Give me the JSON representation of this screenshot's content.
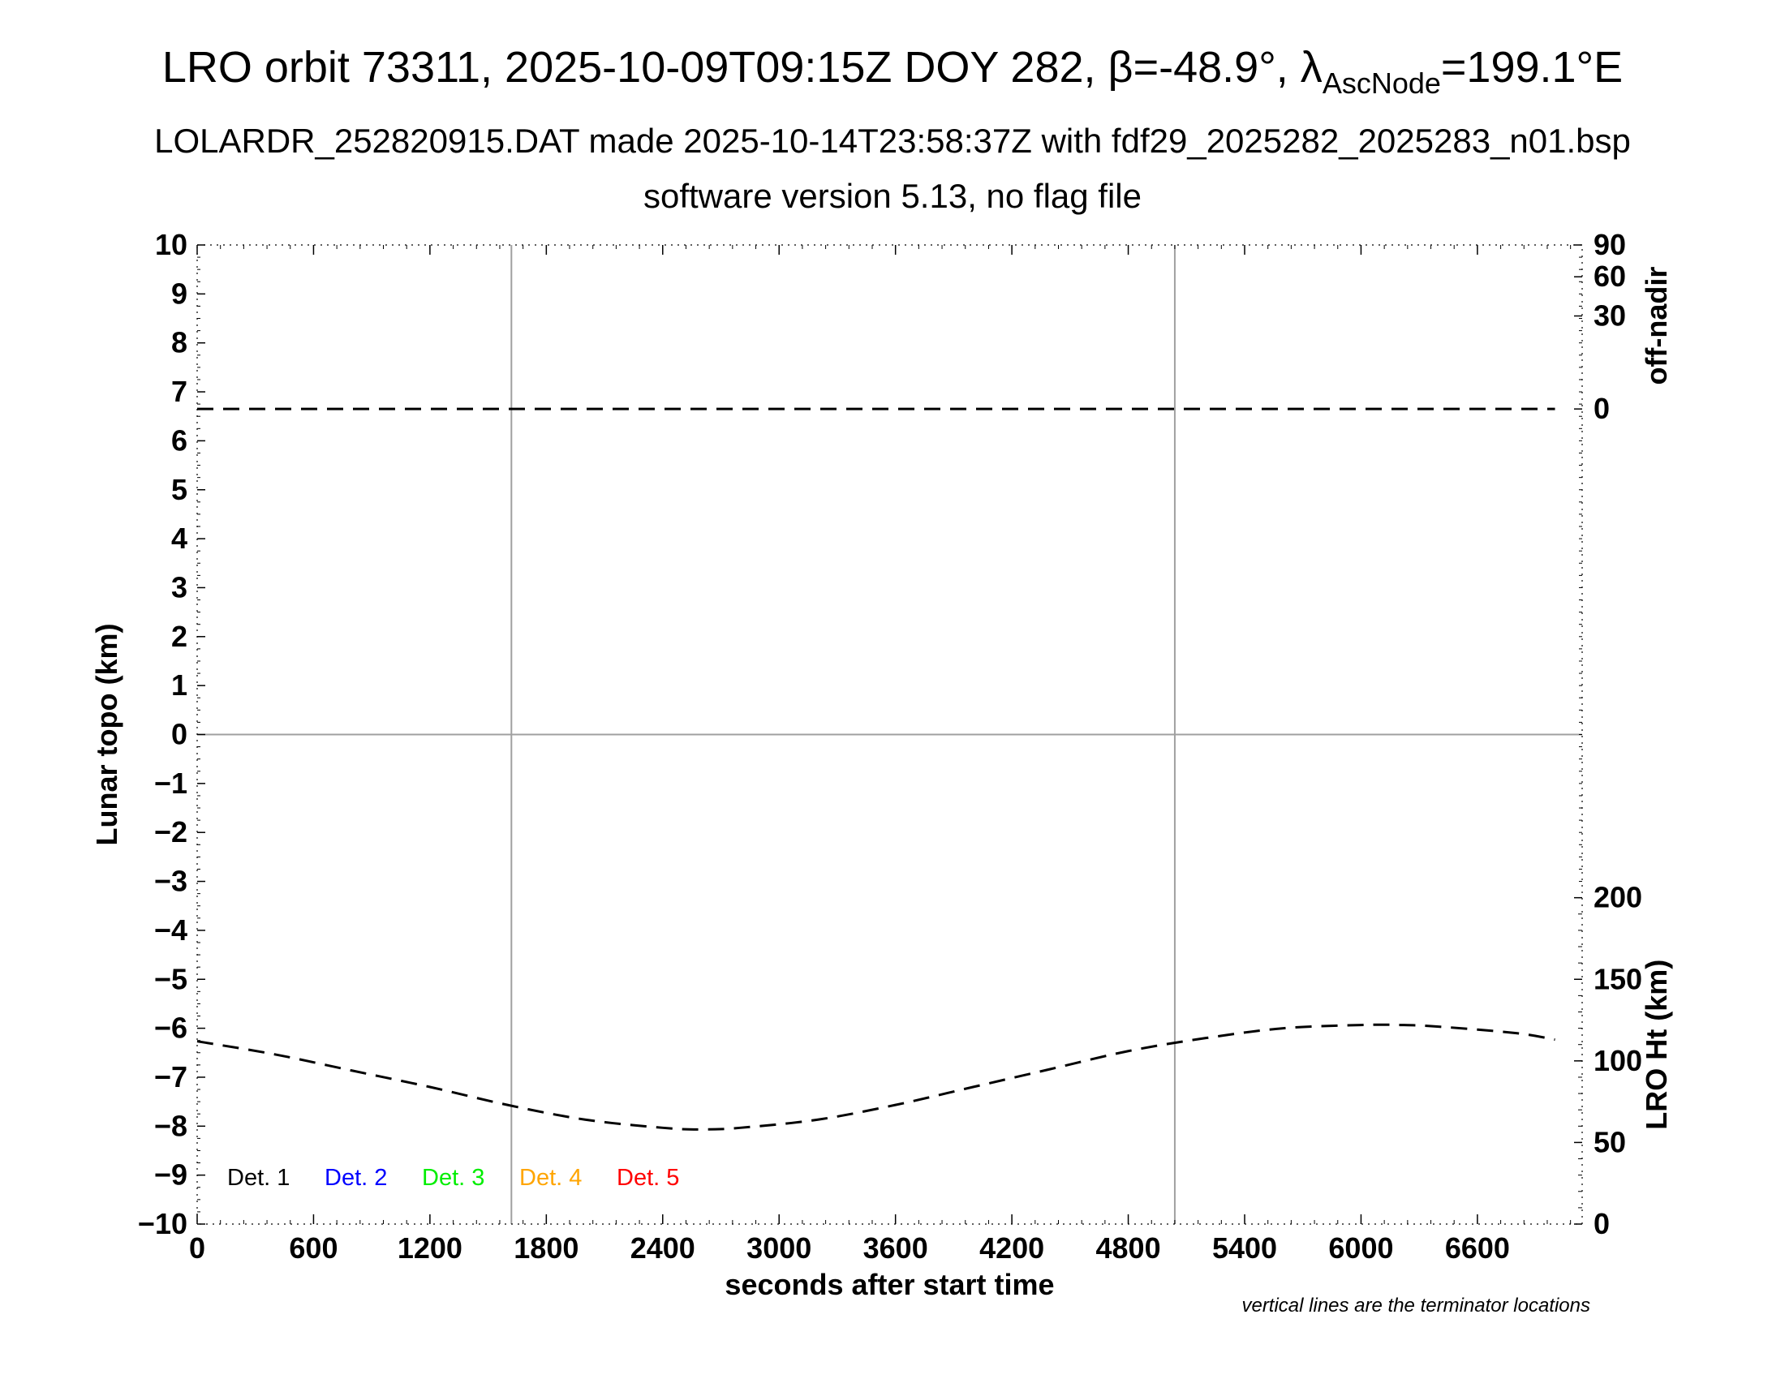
{
  "header": {
    "title_pre": "LRO orbit 73311, 2025-10-09T09:15Z DOY 282, β=-48.9°, λ",
    "title_sub": "AscNode",
    "title_post": "=199.1°E",
    "subtitle": "LOLARDR_252820915.DAT made 2025-10-14T23:58:37Z with fdf29_2025282_2025283_n01.bsp",
    "subtitle2": "software version 5.13, no flag file"
  },
  "note": "vertical lines are the terminator locations",
  "chart_data": {
    "type": "line",
    "xlabel": "seconds after start time",
    "ylabel_left": "Lunar topo (km)",
    "ylabel_right_top": "off-nadir",
    "ylabel_right_bottom": "LRO Ht (km)",
    "xlim": [
      0,
      7140
    ],
    "ylim": [
      -10,
      10
    ],
    "x_ticks": [
      0,
      600,
      1200,
      1800,
      2400,
      3000,
      3600,
      4200,
      4800,
      5400,
      6000,
      6600
    ],
    "y_ticks": [
      10,
      9,
      8,
      7,
      6,
      5,
      4,
      3,
      2,
      1,
      0,
      -1,
      -2,
      -3,
      -4,
      -5,
      -6,
      -7,
      -8,
      -9,
      -10
    ],
    "y_tick_labels": [
      "10",
      "9",
      "8",
      "7",
      "6",
      "5",
      "4",
      "3",
      "2",
      "1",
      "0",
      "−1",
      "−2",
      "−3",
      "−4",
      "−5",
      "−6",
      "−7",
      "−8",
      "−9",
      "−10"
    ],
    "offnadir_ticks": [
      "90",
      "60",
      "30",
      "0"
    ],
    "lro_ht_ticks": [
      0,
      50,
      100,
      150,
      200
    ],
    "terminator_lines_x": [
      1620,
      5040
    ],
    "zero_line_y": 0,
    "legend": [
      {
        "label": "Det. 1",
        "color": "#000000"
      },
      {
        "label": "Det. 2",
        "color": "#0000ff"
      },
      {
        "label": "Det. 3",
        "color": "#00ee00"
      },
      {
        "label": "Det. 4",
        "color": "#ffa500"
      },
      {
        "label": "Det. 5",
        "color": "#ff0000"
      }
    ],
    "series": [
      {
        "name": "off-nadir",
        "axis": "off-nadir (deg)",
        "style": "dashed",
        "x": [
          0,
          7000
        ],
        "values": [
          0.2,
          0.2
        ]
      },
      {
        "name": "LRO Ht",
        "axis": "LRO Ht (km)",
        "style": "dashed",
        "x": [
          0,
          400,
          800,
          1200,
          1600,
          2000,
          2400,
          2600,
          2800,
          3200,
          3600,
          4000,
          4400,
          4800,
          5200,
          5600,
          6000,
          6200,
          6400,
          6800,
          7000
        ],
        "values": [
          112,
          104,
          94,
          84,
          73,
          64,
          59,
          58,
          59,
          64,
          73,
          84,
          95,
          106,
          114,
          120,
          122,
          122,
          121,
          117,
          113
        ]
      }
    ]
  }
}
